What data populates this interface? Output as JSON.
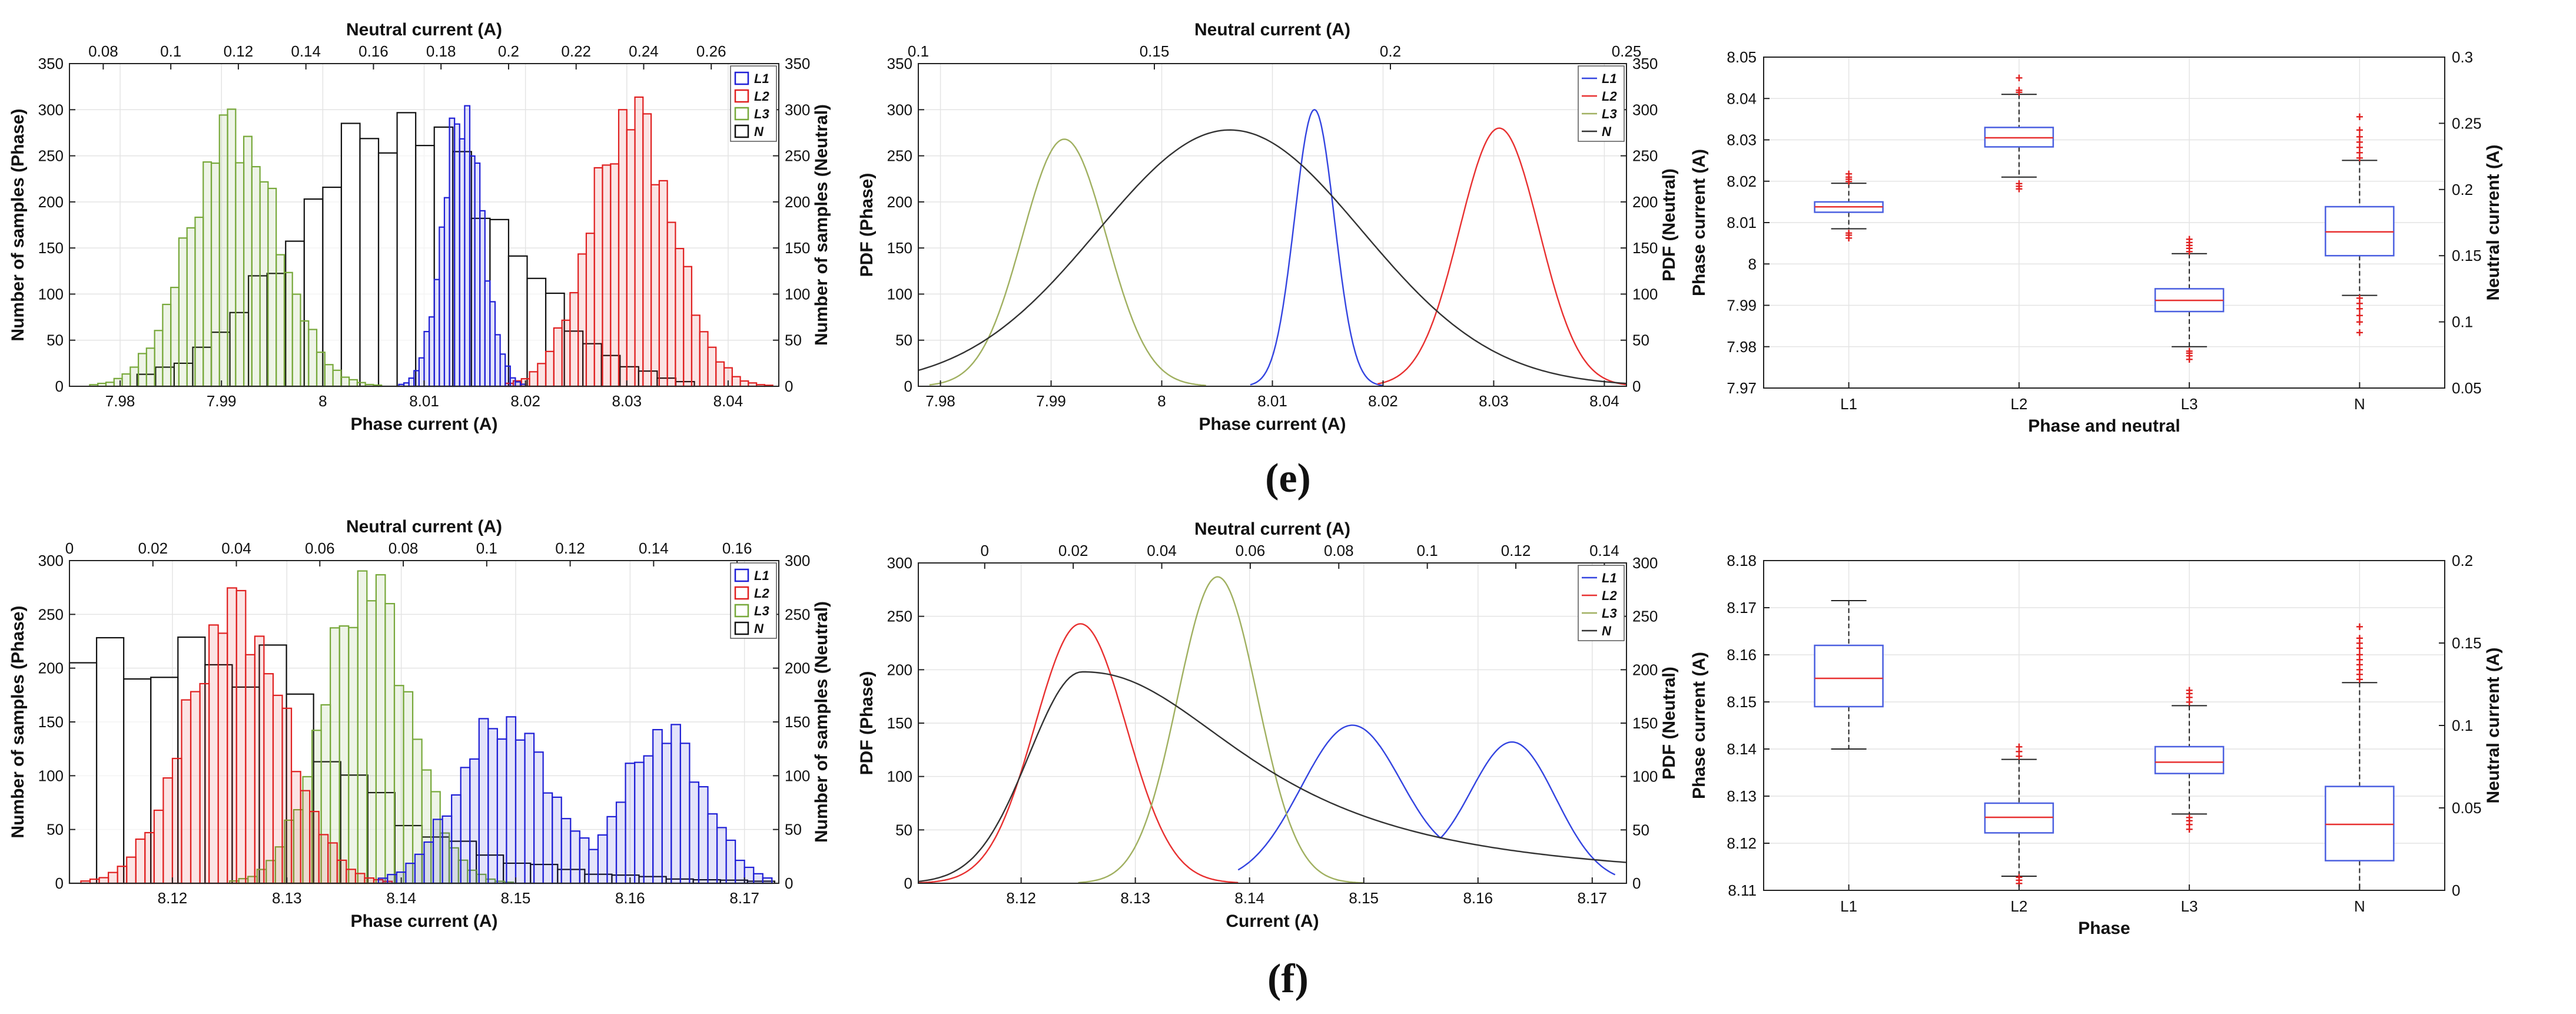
{
  "figure": {
    "captions": [
      "(e)",
      "(f)"
    ]
  },
  "chart_data": [
    {
      "id": "e-hist",
      "type": "bar",
      "subtype": "histogram",
      "xlabel": "Phase current (A)",
      "ylabel": "Number of samples (Phase)",
      "x2label": "Neutral current (A)",
      "y2label": "Number of samples (Neutral)",
      "xlim": [
        7.975,
        8.045
      ],
      "ylim": [
        0,
        350
      ],
      "x2lim": [
        0.07,
        0.28
      ],
      "y2lim": [
        0,
        350
      ],
      "xticks": [
        "7.98",
        "7.99",
        "8",
        "8.01",
        "8.02",
        "8.03",
        "8.04"
      ],
      "x2ticks": [
        "0.08",
        "0.1",
        "0.12",
        "0.14",
        "0.16",
        "0.18",
        "0.2",
        "0.22",
        "0.24",
        "0.26"
      ],
      "yticks": [
        "0",
        "50",
        "100",
        "150",
        "200",
        "250",
        "300",
        "350"
      ],
      "y2ticks": [
        "0",
        "50",
        "100",
        "150",
        "200",
        "250",
        "300",
        "350"
      ],
      "legend": [
        "L1",
        "L2",
        "L3",
        "N"
      ],
      "series": [
        {
          "name": "L1",
          "color": "#1f1fd6",
          "kind": "gauss",
          "mean": 8.0138,
          "sd": 0.0019,
          "peak": 300,
          "bin": 0.0005,
          "range": [
            8.007,
            8.021
          ]
        },
        {
          "name": "L2",
          "color": "#e02020",
          "kind": "gauss",
          "mean": 8.0305,
          "sd": 0.004,
          "peak": 295,
          "bin": 0.0008,
          "range": [
            8.018,
            8.044
          ]
        },
        {
          "name": "L3",
          "color": "#77a83a",
          "kind": "gauss",
          "mean": 7.9912,
          "sd": 0.0043,
          "peak": 280,
          "bin": 0.0008,
          "range": [
            7.977,
            8.005
          ]
        },
        {
          "name": "N",
          "color": "#111111",
          "kind": "gauss",
          "axis": "x2",
          "mean": 0.168,
          "sd": 0.03,
          "peak": 285,
          "bin": 0.0055,
          "range": [
            0.09,
            0.25
          ]
        }
      ]
    },
    {
      "id": "e-pdf",
      "type": "line",
      "subtype": "pdf",
      "xlabel": "Phase current (A)",
      "ylabel": "PDF (Phase)",
      "x2label": "Neutral current (A)",
      "y2label": "PDF (Neutral)",
      "xlim": [
        7.978,
        8.042
      ],
      "ylim": [
        0,
        350
      ],
      "x2lim": [
        0.1,
        0.25
      ],
      "y2lim": [
        0,
        350
      ],
      "xticks": [
        "7.98",
        "7.99",
        "8",
        "8.01",
        "8.02",
        "8.03",
        "8.04"
      ],
      "x2ticks": [
        "0.1",
        "0.15",
        "0.2",
        "0.25"
      ],
      "yticks": [
        "0",
        "50",
        "100",
        "150",
        "200",
        "250",
        "300",
        "350"
      ],
      "y2ticks": [
        "0",
        "50",
        "100",
        "150",
        "200",
        "250",
        "300",
        "350"
      ],
      "legend": [
        "L1",
        "L2",
        "L3",
        "N"
      ],
      "series": [
        {
          "name": "L1",
          "color": "#3344e0",
          "kind": "gauss",
          "mean": 8.0138,
          "sd": 0.0018,
          "peak": 300,
          "range": [
            8.008,
            8.02
          ]
        },
        {
          "name": "L2",
          "color": "#e83030",
          "kind": "gauss",
          "mean": 8.0305,
          "sd": 0.0036,
          "peak": 280,
          "range": [
            8.0195,
            8.042
          ]
        },
        {
          "name": "L3",
          "color": "#a0b060",
          "kind": "gauss",
          "mean": 7.9912,
          "sd": 0.0038,
          "peak": 268,
          "range": [
            7.979,
            8.004
          ]
        },
        {
          "name": "N",
          "color": "#333333",
          "kind": "gauss",
          "axis": "x2",
          "mean": 0.166,
          "sd": 0.028,
          "peak": 278,
          "range": [
            0.1,
            0.25
          ]
        }
      ]
    },
    {
      "id": "e-box",
      "type": "box",
      "xlabel": "Phase and neutral",
      "ylabel": "Phase current (A)",
      "y2label": "Neutral current (A)",
      "categories": [
        "L1",
        "L2",
        "L3",
        "N"
      ],
      "ylim": [
        7.97,
        8.05
      ],
      "y2lim": [
        0.05,
        0.3
      ],
      "yticks": [
        "7.97",
        "7.98",
        "7.99",
        "8",
        "8.01",
        "8.02",
        "8.03",
        "8.04",
        "8.05"
      ],
      "y2ticks": [
        "0.05",
        "0.1",
        "0.15",
        "0.2",
        "0.25",
        "0.3"
      ],
      "boxes": [
        {
          "name": "L1",
          "axis": "y",
          "q1": 8.0125,
          "median": 8.0138,
          "q3": 8.015,
          "wlo": 8.0085,
          "whi": 8.0195,
          "outliers": [
            8.0075,
            8.007,
            8.0063,
            8.02,
            8.0205,
            8.021,
            8.0218
          ]
        },
        {
          "name": "L2",
          "axis": "y",
          "q1": 8.0283,
          "median": 8.0305,
          "q3": 8.033,
          "wlo": 8.021,
          "whi": 8.041,
          "outliers": [
            8.0195,
            8.0188,
            8.0182,
            8.0415,
            8.042,
            8.045
          ]
        },
        {
          "name": "L3",
          "axis": "y",
          "q1": 7.9885,
          "median": 7.9912,
          "q3": 7.994,
          "wlo": 7.98,
          "whi": 8.0025,
          "outliers": [
            7.979,
            7.9785,
            7.9778,
            7.977,
            8.003,
            8.0038,
            8.0045,
            8.0052,
            8.006
          ]
        },
        {
          "name": "N",
          "axis": "y2",
          "q1": 0.15,
          "median": 0.168,
          "q3": 0.187,
          "wlo": 0.12,
          "whi": 0.222,
          "outliers": [
            0.118,
            0.114,
            0.11,
            0.105,
            0.1,
            0.092,
            0.224,
            0.228,
            0.232,
            0.236,
            0.24,
            0.245,
            0.255
          ]
        }
      ]
    },
    {
      "id": "f-hist",
      "type": "bar",
      "subtype": "histogram",
      "xlabel": "Phase current (A)",
      "ylabel": "Number of samples (Phase)",
      "x2label": "Neutral current (A)",
      "y2label": "Number of samples (Neutral)",
      "xlim": [
        8.111,
        8.173
      ],
      "ylim": [
        0,
        300
      ],
      "x2lim": [
        0,
        0.17
      ],
      "y2lim": [
        0,
        300
      ],
      "xticks": [
        "8.12",
        "8.13",
        "8.14",
        "8.15",
        "8.16",
        "8.17"
      ],
      "x2ticks": [
        "0",
        "0.02",
        "0.04",
        "0.06",
        "0.08",
        "0.1",
        "0.12",
        "0.14",
        "0.16"
      ],
      "yticks": [
        "0",
        "50",
        "100",
        "150",
        "200",
        "250",
        "300"
      ],
      "y2ticks": [
        "0",
        "50",
        "100",
        "150",
        "200",
        "250",
        "300"
      ],
      "legend": [
        "L1",
        "L2",
        "L3",
        "N"
      ],
      "series": [
        {
          "name": "L1",
          "color": "#1f1fd6",
          "kind": "bimodal",
          "m1": 8.149,
          "s1": 0.004,
          "p1": 150,
          "m2": 8.163,
          "s2": 0.0035,
          "p2": 140,
          "bin": 0.0008,
          "range": [
            8.138,
            8.172
          ]
        },
        {
          "name": "L2",
          "color": "#e02020",
          "kind": "gauss",
          "mean": 8.1255,
          "sd": 0.0042,
          "peak": 255,
          "bin": 0.0008,
          "range": [
            8.112,
            8.139
          ]
        },
        {
          "name": "L3",
          "color": "#77a83a",
          "kind": "gauss",
          "mean": 8.137,
          "sd": 0.0037,
          "peak": 280,
          "bin": 0.0008,
          "range": [
            8.125,
            8.151
          ]
        },
        {
          "name": "N",
          "color": "#111111",
          "kind": "decay",
          "axis": "x2",
          "flat": 205,
          "knee": 0.05,
          "tau": 0.025,
          "bin": 0.0065,
          "range": [
            0.0,
            0.165
          ]
        }
      ]
    },
    {
      "id": "f-pdf",
      "type": "line",
      "subtype": "pdf",
      "xlabel": "Current (A)",
      "ylabel": "PDF (Phase)",
      "x2label": "Neutral current (A)",
      "y2label": "PDF (Neutral)",
      "xlim": [
        8.111,
        8.173
      ],
      "ylim": [
        0,
        300
      ],
      "x2lim": [
        -0.015,
        0.145
      ],
      "y2lim": [
        0,
        300
      ],
      "xticks": [
        "8.12",
        "8.13",
        "8.14",
        "8.15",
        "8.16",
        "8.17"
      ],
      "x2ticks": [
        "0",
        "0.02",
        "0.04",
        "0.06",
        "0.08",
        "0.1",
        "0.12",
        "0.14"
      ],
      "yticks": [
        "0",
        "50",
        "100",
        "150",
        "200",
        "250",
        "300"
      ],
      "y2ticks": [
        "0",
        "50",
        "100",
        "150",
        "200",
        "250",
        "300"
      ],
      "legend": [
        "L1",
        "L2",
        "L3",
        "N"
      ],
      "series": [
        {
          "name": "L1",
          "color": "#3344e0",
          "kind": "bimodal",
          "m1": 8.149,
          "s1": 0.0045,
          "p1": 148,
          "m2": 8.163,
          "s2": 0.0038,
          "p2": 132,
          "range": [
            8.139,
            8.172
          ]
        },
        {
          "name": "L2",
          "color": "#e83030",
          "kind": "gauss",
          "mean": 8.1252,
          "sd": 0.004,
          "peak": 243,
          "range": [
            8.111,
            8.139
          ]
        },
        {
          "name": "L3",
          "color": "#a0b060",
          "kind": "gauss",
          "mean": 8.1372,
          "sd": 0.0035,
          "peak": 287,
          "range": [
            8.125,
            8.15
          ]
        },
        {
          "name": "N",
          "color": "#333333",
          "kind": "skew",
          "axis": "x2",
          "peak": 198,
          "mode": 0.022,
          "rise": 0.012,
          "tau": 0.045,
          "range": [
            -0.015,
            0.145
          ]
        }
      ]
    },
    {
      "id": "f-box",
      "type": "box",
      "xlabel": "Phase",
      "ylabel": "Phase current (A)",
      "y2label": "Neutral current (A)",
      "categories": [
        "L1",
        "L2",
        "L3",
        "N"
      ],
      "ylim": [
        8.11,
        8.18
      ],
      "y2lim": [
        0,
        0.2
      ],
      "yticks": [
        "8.11",
        "8.12",
        "8.13",
        "8.14",
        "8.15",
        "8.16",
        "8.17",
        "8.18"
      ],
      "y2ticks": [
        "0",
        "0.05",
        "0.1",
        "0.15",
        "0.2"
      ],
      "boxes": [
        {
          "name": "L1",
          "axis": "y",
          "q1": 8.149,
          "median": 8.155,
          "q3": 8.162,
          "wlo": 8.14,
          "whi": 8.1715,
          "outliers": []
        },
        {
          "name": "L2",
          "axis": "y",
          "q1": 8.1222,
          "median": 8.1255,
          "q3": 8.1285,
          "wlo": 8.113,
          "whi": 8.1378,
          "outliers": [
            8.1128,
            8.1122,
            8.1115,
            8.1385,
            8.1395,
            8.1405
          ]
        },
        {
          "name": "L3",
          "axis": "y",
          "q1": 8.1348,
          "median": 8.1372,
          "q3": 8.1405,
          "wlo": 8.1262,
          "whi": 8.1492,
          "outliers": [
            8.1255,
            8.1248,
            8.124,
            8.123,
            8.15,
            8.151,
            8.1518,
            8.1525
          ]
        },
        {
          "name": "N",
          "axis": "y2",
          "q1": 0.018,
          "median": 0.04,
          "q3": 0.063,
          "wlo": 0.0,
          "whi": 0.126,
          "outliers": [
            0.128,
            0.131,
            0.134,
            0.137,
            0.14,
            0.143,
            0.147,
            0.15,
            0.153,
            0.16
          ]
        }
      ]
    }
  ]
}
